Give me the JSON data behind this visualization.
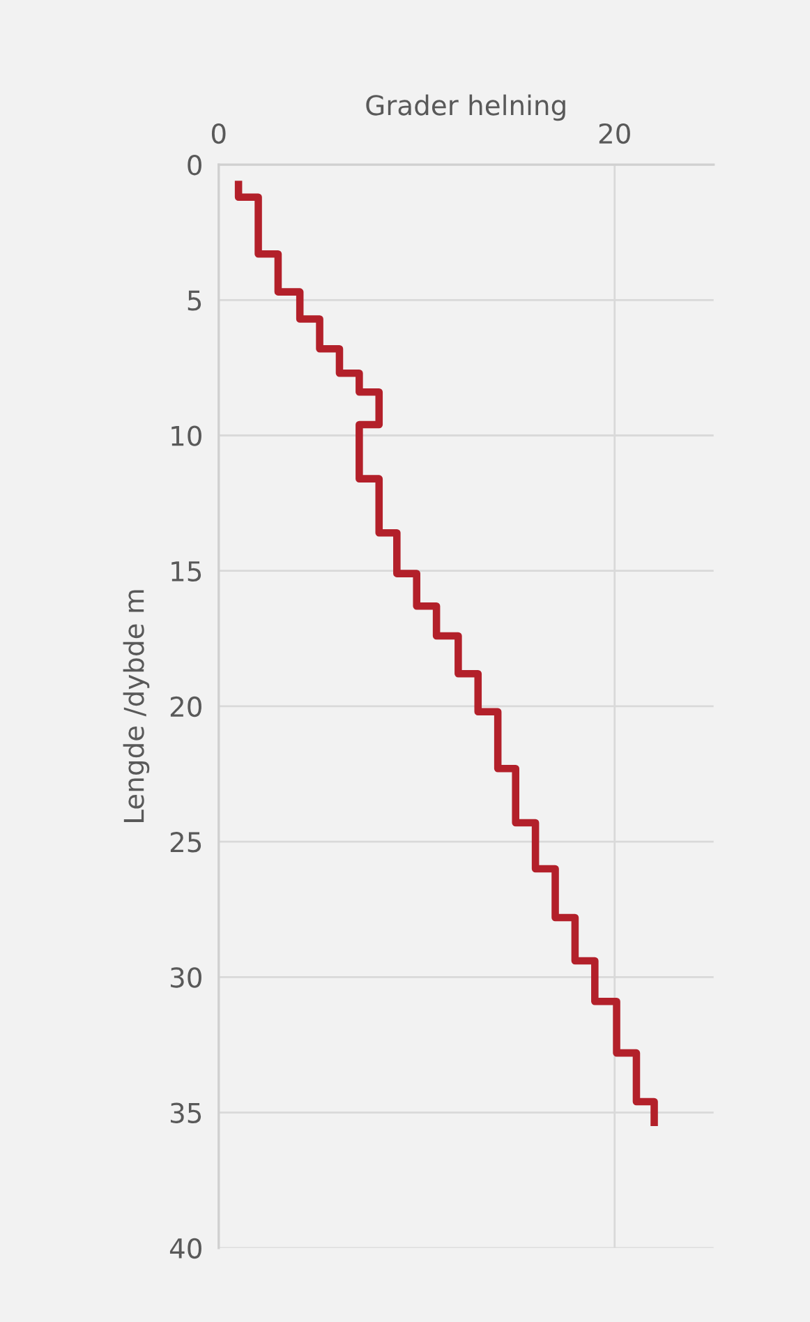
{
  "chart_data": {
    "type": "line",
    "xlabel": "Grader helning",
    "ylabel": "Lengde /dybde m",
    "series": [
      {
        "color": "#b3202a",
        "x": [
          1.0,
          1.0,
          2.0,
          2.0,
          3.0,
          3.0,
          4.1,
          4.1,
          5.1,
          5.1,
          6.1,
          6.1,
          7.1,
          7.1,
          8.1,
          8.1,
          7.1,
          7.1,
          8.1,
          8.1,
          9.0,
          9.0,
          10.0,
          10.0,
          11.0,
          11.0,
          12.1,
          12.1,
          13.1,
          13.1,
          14.1,
          14.1,
          15.0,
          15.0,
          16.0,
          16.0,
          17.0,
          17.0,
          18.0,
          18.0,
          19.0,
          19.0,
          20.1,
          20.1,
          21.1,
          21.1,
          22.0,
          22.0
        ],
        "values": [
          0.6,
          1.2,
          1.2,
          3.3,
          3.3,
          4.7,
          4.7,
          5.7,
          5.7,
          6.8,
          6.8,
          7.7,
          7.7,
          8.4,
          8.4,
          9.6,
          9.6,
          11.6,
          11.6,
          13.6,
          13.6,
          15.1,
          15.1,
          16.3,
          16.3,
          17.4,
          17.4,
          18.8,
          18.8,
          20.2,
          20.2,
          22.3,
          22.3,
          24.3,
          24.3,
          26.0,
          26.0,
          27.8,
          27.8,
          29.4,
          29.4,
          30.9,
          30.9,
          32.8,
          32.8,
          34.6,
          34.6,
          35.5
        ]
      }
    ],
    "xlim": [
      0,
      25
    ],
    "xticks": [
      0,
      20
    ],
    "ylim": [
      40,
      0
    ],
    "yticks": [
      0,
      5,
      10,
      15,
      20,
      25,
      30,
      35,
      40
    ],
    "grid": true,
    "legend": false,
    "marker": "none",
    "line_style": "solid"
  }
}
